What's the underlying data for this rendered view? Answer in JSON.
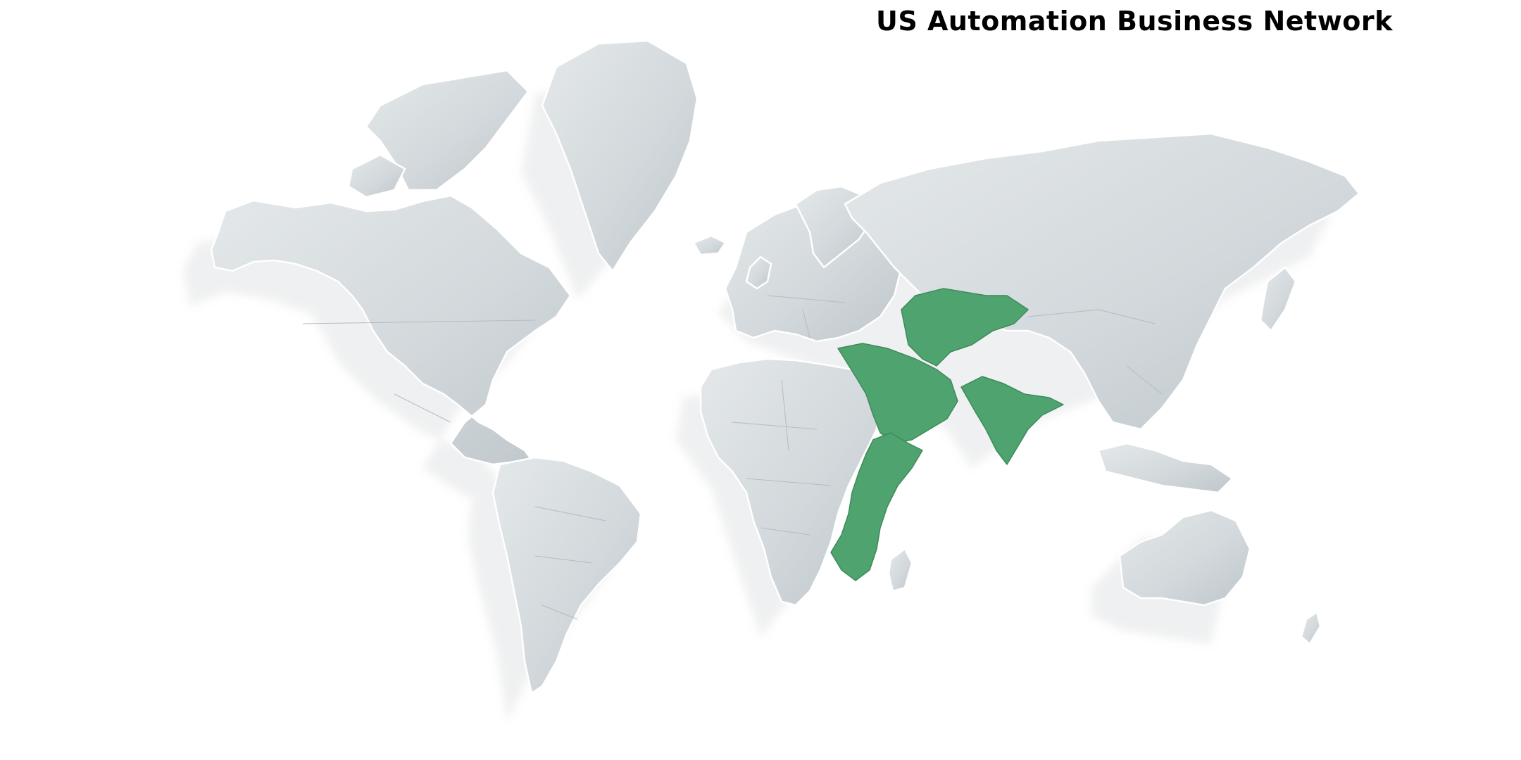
{
  "header": {
    "title": "US Automation Business Network"
  },
  "map": {
    "style": "3D light-grey world map with drop shadows",
    "highlight_color": "#4fa36e",
    "base_color": "#d5dadd",
    "highlighted_regions": [
      "Central Asia",
      "Middle East / Arabian Peninsula",
      "Indian Subcontinent",
      "East Africa"
    ]
  }
}
